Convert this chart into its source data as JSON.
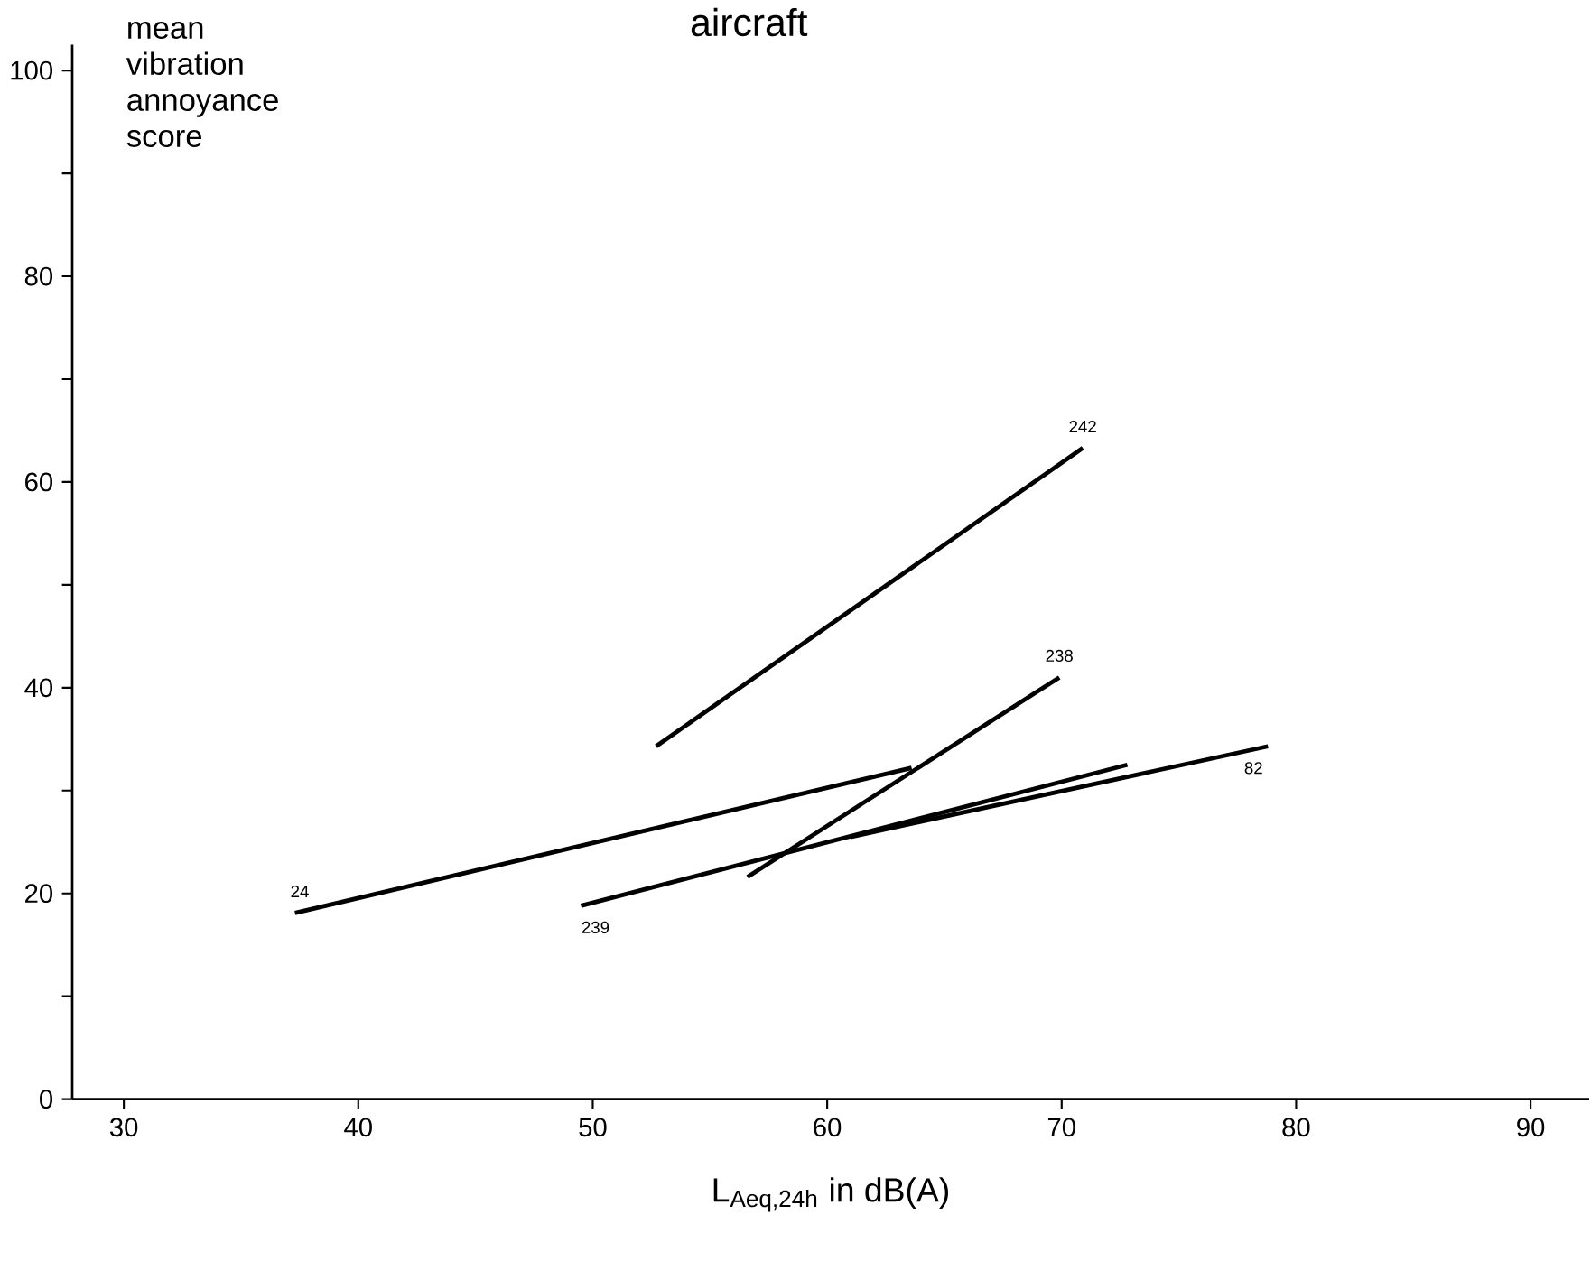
{
  "chart_data": {
    "type": "line",
    "title": "aircraft",
    "xlabel": "L$_{Aeq,24h}$ in dB(A)",
    "ylabel": "mean vibration annoyance score",
    "xlim": [
      27.8,
      92.5
    ],
    "ylim": [
      0,
      102.5
    ],
    "xticks": [
      30,
      40,
      50,
      60,
      70,
      80,
      90
    ],
    "yticks": [
      0,
      {
        "value": 10,
        "label": null
      },
      20,
      {
        "value": 30,
        "label": null
      },
      40,
      {
        "value": 50,
        "label": null
      },
      60,
      {
        "value": 70,
        "label": null
      },
      80,
      {
        "value": 90,
        "label": null
      },
      100
    ],
    "grid": false,
    "legend": false,
    "marker": "none",
    "line_style": "solid",
    "series": [
      {
        "name": "242",
        "color": "#000000",
        "x": [
          52.7,
          70.9
        ],
        "values": [
          34.3,
          63.3
        ]
      },
      {
        "name": "238",
        "color": "#000000",
        "x": [
          56.6,
          69.9
        ],
        "values": [
          21.6,
          41.0
        ]
      },
      {
        "name": "24",
        "color": "#000000",
        "x": [
          37.3,
          63.6
        ],
        "values": [
          18.1,
          32.2
        ]
      },
      {
        "name": "239",
        "color": "#000000",
        "x": [
          49.5,
          72.8
        ],
        "values": [
          18.8,
          32.5
        ]
      },
      {
        "name": "82",
        "color": "#000000",
        "x": [
          61.0,
          78.8
        ],
        "values": [
          25.5,
          34.3
        ]
      }
    ]
  }
}
